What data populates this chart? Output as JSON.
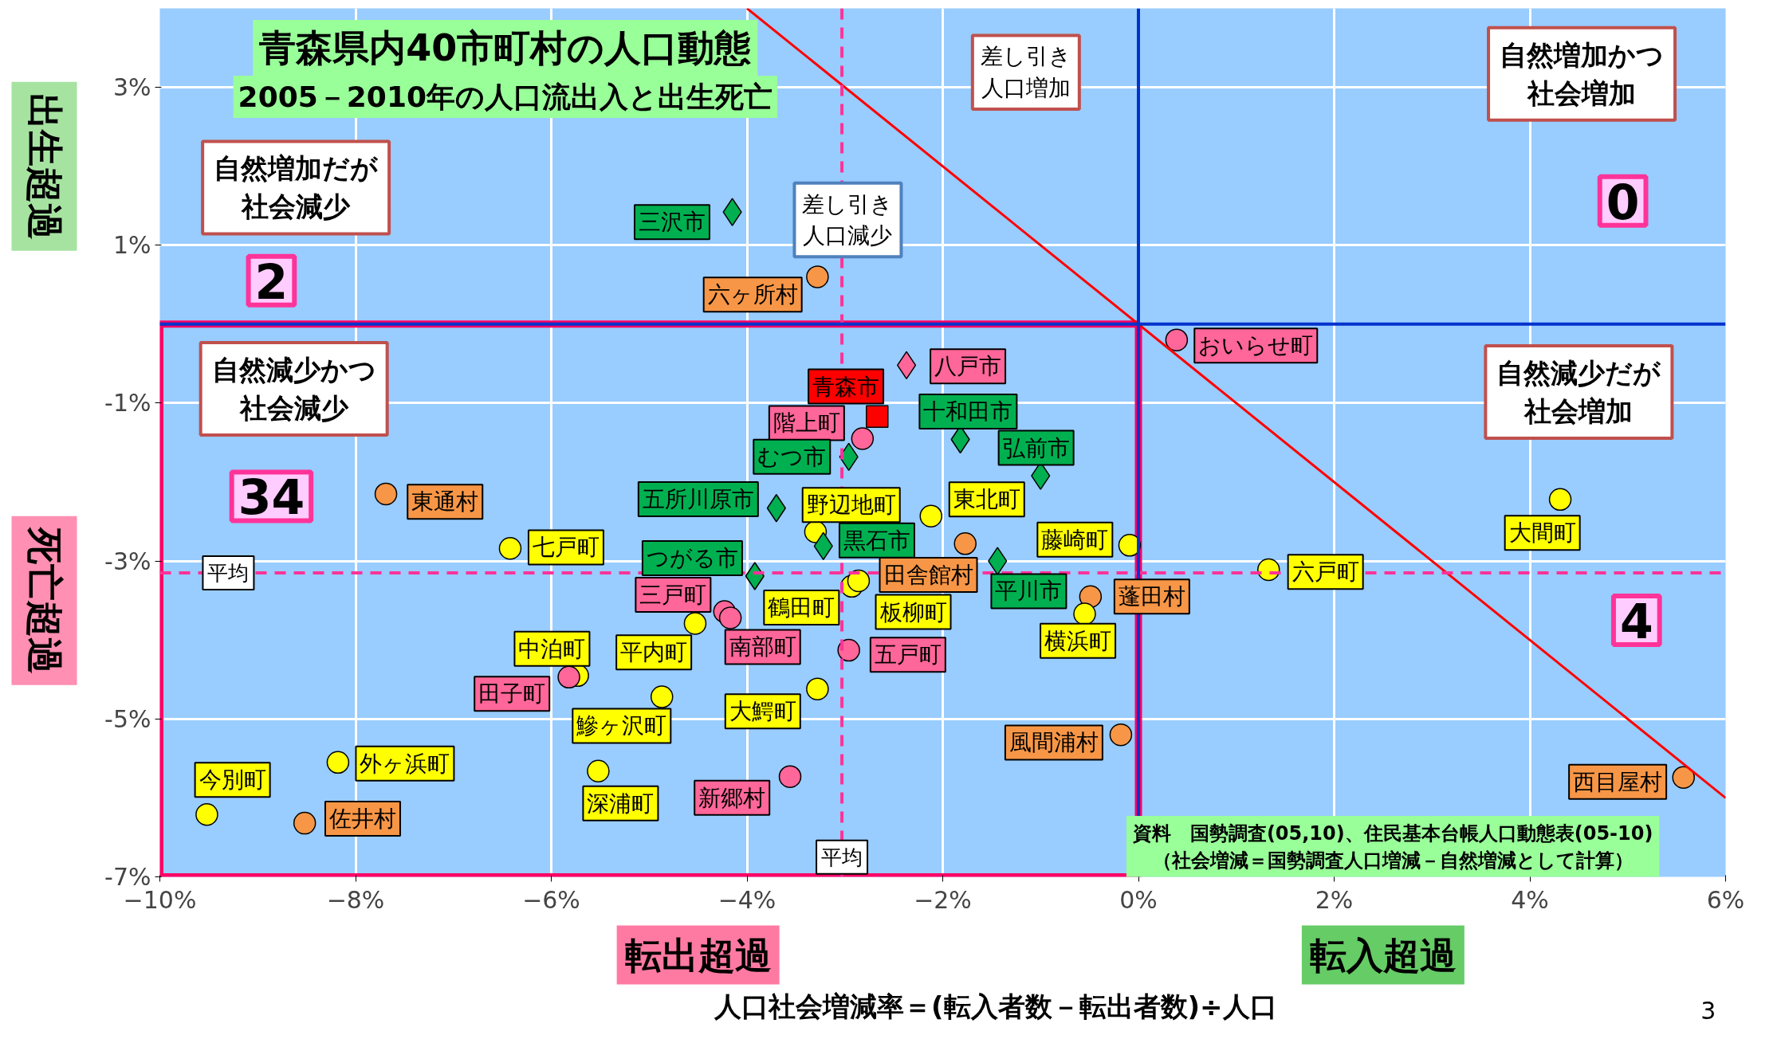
{
  "chart_data": {
    "type": "scatter",
    "title": "青森県内40市町村の人口動態",
    "subtitle": "2005－2010年の人口流出入と出生死亡",
    "xlabel": "人口社会増減率＝(転入者数－転出者数)÷人口",
    "xlim": [
      -10,
      6
    ],
    "ylim": [
      -7,
      4
    ],
    "xticks": [
      {
        "value": -10,
        "label": "−10%"
      },
      {
        "value": -8,
        "label": "−8%"
      },
      {
        "value": -6,
        "label": "−6%"
      },
      {
        "value": -4,
        "label": "−4%"
      },
      {
        "value": -2,
        "label": "−2%"
      },
      {
        "value": 0,
        "label": "0%"
      },
      {
        "value": 2,
        "label": "2%"
      },
      {
        "value": 4,
        "label": "4%"
      },
      {
        "value": 6,
        "label": "6%"
      }
    ],
    "yticks": [
      {
        "value": -7,
        "label": "-7%"
      },
      {
        "value": -5,
        "label": "-5%"
      },
      {
        "value": -3,
        "label": "-3%"
      },
      {
        "value": -1,
        "label": "-1%"
      },
      {
        "value": 1,
        "label": "1%"
      },
      {
        "value": 3,
        "label": "3%"
      }
    ],
    "grid": true,
    "series": [
      {
        "marker": "circle",
        "x": [
          -3.28,
          0.39,
          -2.82,
          -7.69,
          -2.12,
          -3.3,
          -1.77,
          -0.09,
          -6.42,
          4.31,
          1.33,
          -2.93,
          -2.86,
          -0.49,
          -0.55,
          -4.23,
          -4.17,
          -4.53,
          -2.96,
          -5.73,
          -5.82,
          -3.28,
          -4.87,
          -0.18,
          -8.18,
          -5.52,
          -3.56,
          -9.52,
          -8.52,
          5.57
        ],
        "values": [
          0.6,
          -0.2,
          -1.45,
          -2.15,
          -2.43,
          -2.63,
          -2.78,
          -2.8,
          -2.84,
          -2.22,
          -3.11,
          -3.32,
          -3.25,
          -3.45,
          -3.67,
          -3.64,
          -3.72,
          -3.79,
          -4.13,
          -4.45,
          -4.47,
          -4.62,
          -4.72,
          -5.2,
          -5.55,
          -5.66,
          -5.73,
          -6.21,
          -6.32,
          -5.74
        ],
        "colors": [
          "#f79646",
          "#ff6699",
          "#ff6699",
          "#f79646",
          "#ffff00",
          "#ffff00",
          "#f79646",
          "#ffff00",
          "#ffff00",
          "#ffff00",
          "#ffff00",
          "#ffff00",
          "#ffff00",
          "#f79646",
          "#ffff00",
          "#ff6699",
          "#ff6699",
          "#ffff00",
          "#ff6699",
          "#ffff00",
          "#ff6699",
          "#ffff00",
          "#ffff00",
          "#f79646",
          "#ffff00",
          "#ffff00",
          "#ff6699",
          "#ffff00",
          "#f79646",
          "#f79646"
        ],
        "value_labels": [
          "六ヶ所村",
          "おいらせ町",
          "階上町",
          "東通村",
          "東北町",
          "野辺地町",
          "田舎館村",
          "藤崎町",
          "七戸町",
          "大間町",
          "六戸町",
          "鶴田町",
          "板柳町",
          "蓬田村",
          "横浜町",
          "三戸町",
          "南部町",
          "平内町",
          "五戸町",
          "中泊町",
          "田子町",
          "大鰐町",
          "鰺ヶ沢町",
          "風間浦村",
          "外ヶ浜町",
          "深浦町",
          "新郷村",
          "今別町",
          "佐井村",
          "西目屋村"
        ]
      },
      {
        "marker": "diamond",
        "x": [
          -4.15,
          -2.37,
          -1.82,
          -2.96,
          -1.0,
          -3.7,
          -3.22,
          -1.44,
          -3.92
        ],
        "values": [
          1.42,
          -0.52,
          -1.46,
          -1.68,
          -1.92,
          -2.33,
          -2.81,
          -3.0,
          -3.19
        ],
        "colors": [
          "#00b050",
          "#ff6699",
          "#00b050",
          "#00b050",
          "#00b050",
          "#00b050",
          "#00b050",
          "#00b050",
          "#00b050"
        ],
        "value_labels": [
          "三沢市",
          "八戸市",
          "十和田市",
          "むつ市",
          "弘前市",
          "五所川原市",
          "黒石市",
          "平川市",
          "つがる市"
        ]
      },
      {
        "marker": "square",
        "x": [
          -2.67
        ],
        "values": [
          -1.17
        ],
        "colors": [
          "#ff0000"
        ],
        "value_labels": [
          "青森市"
        ]
      },
      {
        "type": "line",
        "x": [
          -4,
          6
        ],
        "values": [
          4,
          -6
        ],
        "color": "#ff0000",
        "line_style": "solid"
      }
    ],
    "ref_lines": [
      {
        "axis": "x",
        "value": -3.03,
        "label": "平均",
        "color": "#ff3399",
        "line_style": "dashed"
      },
      {
        "axis": "y",
        "value": -3.15,
        "label": "平均",
        "color": "#ff3399",
        "line_style": "dashed"
      },
      {
        "axis": "x",
        "value": 0,
        "color": "#0033cc",
        "line_style": "solid"
      },
      {
        "axis": "y",
        "value": 0,
        "color": "#0033cc",
        "line_style": "solid"
      }
    ],
    "annotations": [
      "出生超過",
      "死亡超過",
      "転出超過",
      "転入超過",
      "自然増加だが社会減少",
      "2",
      "自然増加かつ社会増加",
      "0",
      "自然減少かつ社会減少",
      "34",
      "自然減少だが社会増加",
      "4",
      "差し引き人口増加",
      "差し引き人口減少",
      "資料　国勢調査(05,10)、住民基本台帳人口動態表(05-10)\n（社会増減＝国勢調査人口増減－自然増減として計算）",
      "3"
    ]
  }
}
